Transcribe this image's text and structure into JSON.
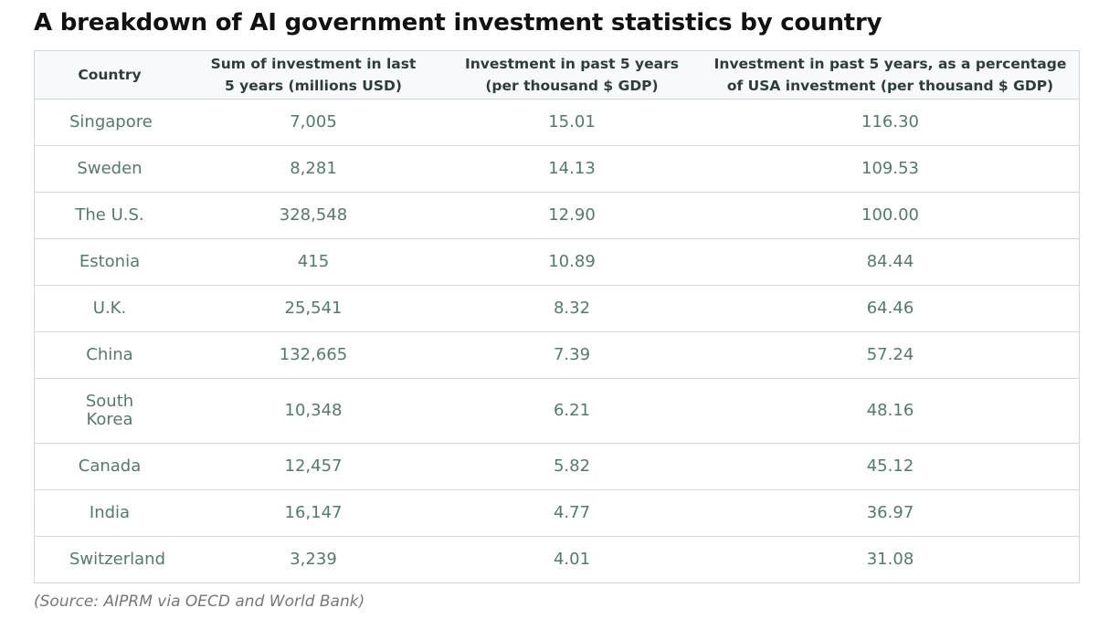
{
  "title": "A breakdown of AI government investment statistics by country",
  "columns": {
    "country": "Country",
    "sum_line1": "Sum of investment in last",
    "sum_line2": "5 years (millions USD)",
    "per_gdp_line1": "Investment in past 5 years",
    "per_gdp_line2": "(per thousand $ GDP)",
    "pct_usa_line1": "Investment in past 5 years, as a percentage",
    "pct_usa_line2": "of USA investment (per thousand $ GDP)"
  },
  "rows": [
    {
      "country": "Singapore",
      "sum": "7,005",
      "per_gdp": "15.01",
      "pct_usa": "116.30"
    },
    {
      "country": "Sweden",
      "sum": "8,281",
      "per_gdp": "14.13",
      "pct_usa": "109.53"
    },
    {
      "country": "The U.S.",
      "sum": "328,548",
      "per_gdp": "12.90",
      "pct_usa": "100.00"
    },
    {
      "country": "Estonia",
      "sum": "415",
      "per_gdp": "10.89",
      "pct_usa": "84.44"
    },
    {
      "country": "U.K.",
      "sum": "25,541",
      "per_gdp": "8.32",
      "pct_usa": "64.46"
    },
    {
      "country": "China",
      "sum": "132,665",
      "per_gdp": "7.39",
      "pct_usa": "57.24"
    },
    {
      "country": "South Korea",
      "sum": "10,348",
      "per_gdp": "6.21",
      "pct_usa": "48.16"
    },
    {
      "country": "Canada",
      "sum": "12,457",
      "per_gdp": "5.82",
      "pct_usa": "45.12"
    },
    {
      "country": "India",
      "sum": "16,147",
      "per_gdp": "4.77",
      "pct_usa": "36.97"
    },
    {
      "country": "Switzerland",
      "sum": "3,239",
      "per_gdp": "4.01",
      "pct_usa": "31.08"
    }
  ],
  "source": "(Source: AIPRM via OECD and World Bank)",
  "colors": {
    "title": "#111111",
    "header_text": "#2f3c3a",
    "header_bg": "#f7f9fa",
    "cell_text": "#557a69",
    "border": "#d3d7d9",
    "source_text": "#777777"
  }
}
